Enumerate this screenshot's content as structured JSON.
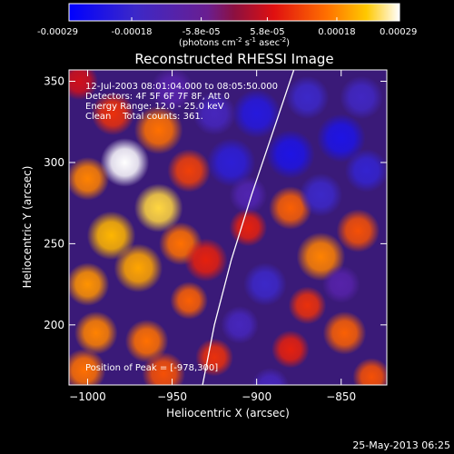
{
  "colorbar": {
    "ticks": [
      "-0.00029",
      "-0.00018",
      "-5.8e-05",
      "5.8e-05",
      "0.00018",
      "0.00029"
    ],
    "tick_values": [
      -0.00029,
      -0.00018,
      -5.8e-05,
      5.8e-05,
      0.00018,
      0.00029
    ],
    "range": [
      -0.00029,
      0.00029
    ],
    "units": {
      "base": "(photons cm",
      "exp1": "-2",
      "mid": " s",
      "exp2": "-1",
      "mid2": " asec",
      "exp3": "-2",
      "close": ")"
    },
    "colors": [
      "#0000ff",
      "#5a1fa8",
      "#8a1858",
      "#c81010",
      "#ff6000",
      "#ffc000",
      "#ffffff"
    ]
  },
  "chart_data": {
    "type": "heatmap",
    "title": "Reconstructed RHESSI Image",
    "xlabel": "Heliocentric X (arcsec)",
    "ylabel": "Heliocentric Y (arcsec)",
    "xlim": [
      -1011,
      -823
    ],
    "ylim": [
      163,
      357
    ],
    "xticks": [
      -1000,
      -950,
      -900,
      -850
    ],
    "xtick_labels": [
      "−1000",
      "−950",
      "−900",
      "−850"
    ],
    "yticks": [
      200,
      250,
      300,
      350
    ],
    "ytick_labels": [
      "200",
      "250",
      "300",
      "350"
    ],
    "annotations": [
      "12-Jul-2003 08:01:04.000 to 08:05:50.000",
      "Detectors: 4F 5F 6F 7F 8F, Att 0",
      "Energy Range: 12.0 - 25.0 keV",
      "Clean    Total counts: 361."
    ],
    "peak_label": "Position of Peak = [-978,300]",
    "peak": [
      -978,
      300
    ],
    "limb_points": [
      [
        -932,
        163
      ],
      [
        -925,
        200
      ],
      [
        -915,
        240
      ],
      [
        -903,
        280
      ],
      [
        -890,
        320
      ],
      [
        -878,
        357
      ]
    ],
    "blobs": [
      {
        "x": -978,
        "y": 300,
        "v": 1.0,
        "r": 9
      },
      {
        "x": -958,
        "y": 272,
        "v": 0.85,
        "r": 9
      },
      {
        "x": -986,
        "y": 255,
        "v": 0.75,
        "r": 9
      },
      {
        "x": -1000,
        "y": 225,
        "v": 0.65,
        "r": 8
      },
      {
        "x": -970,
        "y": 235,
        "v": 0.7,
        "r": 9
      },
      {
        "x": -945,
        "y": 250,
        "v": 0.55,
        "r": 8
      },
      {
        "x": -1000,
        "y": 290,
        "v": 0.6,
        "r": 8
      },
      {
        "x": -958,
        "y": 320,
        "v": 0.55,
        "r": 9
      },
      {
        "x": -940,
        "y": 295,
        "v": 0.4,
        "r": 8
      },
      {
        "x": -985,
        "y": 330,
        "v": 0.35,
        "r": 8
      },
      {
        "x": -995,
        "y": 195,
        "v": 0.6,
        "r": 8
      },
      {
        "x": -965,
        "y": 190,
        "v": 0.55,
        "r": 8
      },
      {
        "x": -940,
        "y": 215,
        "v": 0.5,
        "r": 7
      },
      {
        "x": -1002,
        "y": 172,
        "v": 0.55,
        "r": 8
      },
      {
        "x": -955,
        "y": 170,
        "v": 0.45,
        "r": 8
      },
      {
        "x": -925,
        "y": 180,
        "v": 0.35,
        "r": 7
      },
      {
        "x": -930,
        "y": 240,
        "v": 0.3,
        "r": 8
      },
      {
        "x": -905,
        "y": 260,
        "v": 0.3,
        "r": 7
      },
      {
        "x": -880,
        "y": 272,
        "v": 0.5,
        "r": 8
      },
      {
        "x": -862,
        "y": 242,
        "v": 0.6,
        "r": 9
      },
      {
        "x": -840,
        "y": 258,
        "v": 0.45,
        "r": 8
      },
      {
        "x": -870,
        "y": 212,
        "v": 0.35,
        "r": 7
      },
      {
        "x": -848,
        "y": 195,
        "v": 0.5,
        "r": 8
      },
      {
        "x": -832,
        "y": 168,
        "v": 0.45,
        "r": 7
      },
      {
        "x": -880,
        "y": 185,
        "v": 0.3,
        "r": 7
      },
      {
        "x": -915,
        "y": 300,
        "v": -0.7,
        "r": 9
      },
      {
        "x": -900,
        "y": 330,
        "v": -0.75,
        "r": 9
      },
      {
        "x": -880,
        "y": 305,
        "v": -0.8,
        "r": 9
      },
      {
        "x": -862,
        "y": 280,
        "v": -0.6,
        "r": 8
      },
      {
        "x": -850,
        "y": 315,
        "v": -0.8,
        "r": 9
      },
      {
        "x": -835,
        "y": 295,
        "v": -0.65,
        "r": 8
      },
      {
        "x": -870,
        "y": 340,
        "v": -0.6,
        "r": 8
      },
      {
        "x": -838,
        "y": 340,
        "v": -0.55,
        "r": 8
      },
      {
        "x": -925,
        "y": 330,
        "v": -0.5,
        "r": 8
      },
      {
        "x": -895,
        "y": 225,
        "v": -0.6,
        "r": 8
      },
      {
        "x": -910,
        "y": 200,
        "v": -0.5,
        "r": 7
      },
      {
        "x": -892,
        "y": 162,
        "v": -0.5,
        "r": 7
      },
      {
        "x": -850,
        "y": 225,
        "v": -0.35,
        "r": 7
      },
      {
        "x": -905,
        "y": 280,
        "v": -0.4,
        "r": 7
      },
      {
        "x": -950,
        "y": 345,
        "v": -0.35,
        "r": 8
      },
      {
        "x": -1005,
        "y": 350,
        "v": 0.2,
        "r": 7
      }
    ],
    "grid": false
  },
  "footer": {
    "timestamp": "25-May-2013 06:25"
  }
}
